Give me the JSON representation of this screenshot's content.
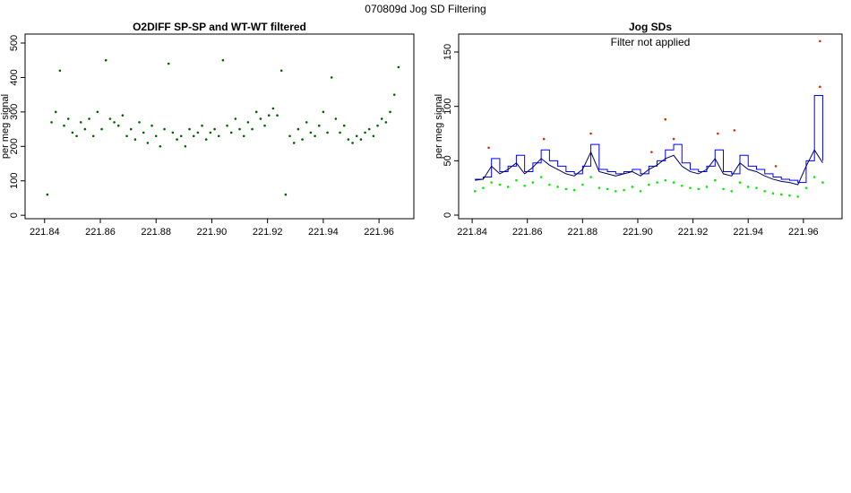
{
  "title": "070809d   Jog SD Filtering",
  "chart_data": [
    {
      "type": "scatter",
      "title": "O2DIFF SP-SP and WT-WT filtered",
      "y_label": "per meg signal",
      "xlim": [
        221.833,
        221.9725
      ],
      "ylim": [
        -10,
        526
      ],
      "xticks": [
        221.84,
        221.86,
        221.88,
        {
          "value": 221.9,
          "label": "221.90"
        },
        221.92,
        221.94,
        221.96
      ],
      "yticks": [
        0,
        100,
        200,
        300,
        400,
        500
      ],
      "x": [
        221.841,
        221.8425,
        221.844,
        221.8455,
        221.847,
        221.8485,
        221.85,
        221.8515,
        221.853,
        221.8545,
        221.856,
        221.8575,
        221.859,
        221.8605,
        221.862,
        221.8635,
        221.865,
        221.8665,
        221.868,
        221.8695,
        221.871,
        221.8725,
        221.874,
        221.8755,
        221.877,
        221.8785,
        221.88,
        221.8815,
        221.883,
        221.8845,
        221.886,
        221.8875,
        221.889,
        221.8905,
        221.892,
        221.8935,
        221.895,
        221.8965,
        221.898,
        221.8995,
        221.901,
        221.9025,
        221.904,
        221.9055,
        221.907,
        221.9085,
        221.91,
        221.9115,
        221.913,
        221.9145,
        221.916,
        221.9175,
        221.919,
        221.9205,
        221.922,
        221.9235,
        221.925,
        221.9265,
        221.928,
        221.9295,
        221.931,
        221.9325,
        221.934,
        221.9355,
        221.937,
        221.9385,
        221.94,
        221.9415,
        221.943,
        221.9445,
        221.946,
        221.9475,
        221.949,
        221.9505,
        221.952,
        221.9535,
        221.955,
        221.9565,
        221.958,
        221.9595,
        221.961,
        221.9625,
        221.964,
        221.9655,
        221.967
      ],
      "series": [
        {
          "type": "scatter",
          "color": "#006400",
          "values": [
            60,
            270,
            300,
            420,
            260,
            280,
            240,
            230,
            270,
            250,
            280,
            230,
            300,
            250,
            450,
            280,
            270,
            260,
            290,
            230,
            250,
            220,
            270,
            240,
            210,
            260,
            230,
            200,
            250,
            440,
            240,
            220,
            230,
            200,
            250,
            230,
            240,
            260,
            220,
            240,
            250,
            230,
            450,
            260,
            240,
            280,
            250,
            230,
            270,
            250,
            300,
            280,
            260,
            290,
            310,
            290,
            420,
            60,
            230,
            210,
            250,
            220,
            270,
            240,
            230,
            260,
            300,
            240,
            400,
            280,
            240,
            260,
            220,
            210,
            230,
            220,
            240,
            250,
            230,
            260,
            280,
            270,
            300,
            350,
            430
          ]
        }
      ]
    },
    {
      "type": "scatter",
      "title": "Jog SDs",
      "annotation": "Filter not applied",
      "y_label": "per meg signal",
      "xlim": [
        221.8351,
        221.974
      ],
      "ylim": [
        -3.3,
        166.5
      ],
      "xticks": [
        221.84,
        221.86,
        221.88,
        {
          "value": 221.9,
          "label": "221.90"
        },
        221.92,
        221.94,
        221.96
      ],
      "yticks": [
        0,
        50,
        100,
        150
      ],
      "x": [
        221.841,
        221.844,
        221.847,
        221.85,
        221.853,
        221.856,
        221.859,
        221.862,
        221.865,
        221.868,
        221.871,
        221.874,
        221.877,
        221.88,
        221.883,
        221.886,
        221.889,
        221.892,
        221.895,
        221.898,
        221.901,
        221.904,
        221.907,
        221.91,
        221.913,
        221.916,
        221.919,
        221.922,
        221.925,
        221.928,
        221.931,
        221.934,
        221.937,
        221.94,
        221.943,
        221.946,
        221.949,
        221.952,
        221.955,
        221.958,
        221.961,
        221.964,
        221.967
      ],
      "series": [
        {
          "type": "scatter",
          "color": "#00ee00",
          "values": [
            22,
            25,
            30,
            28,
            26,
            32,
            27,
            30,
            35,
            28,
            26,
            24,
            23,
            28,
            35,
            25,
            24,
            22,
            23,
            26,
            22,
            28,
            30,
            32,
            30,
            27,
            25,
            24,
            26,
            32,
            24,
            22,
            30,
            26,
            25,
            22,
            20,
            19,
            18,
            17,
            25,
            35,
            30
          ]
        },
        {
          "type": "step",
          "color": "#0000ff",
          "values": [
            33,
            35,
            52,
            40,
            45,
            55,
            40,
            48,
            60,
            50,
            45,
            40,
            38,
            45,
            65,
            42,
            40,
            38,
            40,
            42,
            38,
            45,
            50,
            60,
            65,
            48,
            42,
            40,
            45,
            60,
            40,
            38,
            55,
            45,
            42,
            38,
            35,
            33,
            32,
            30,
            50,
            110,
            50
          ]
        },
        {
          "type": "line",
          "color": "#000060",
          "values": [
            32,
            33,
            45,
            38,
            42,
            48,
            38,
            44,
            52,
            46,
            42,
            38,
            36,
            42,
            58,
            40,
            38,
            36,
            38,
            40,
            36,
            42,
            46,
            52,
            55,
            45,
            40,
            38,
            42,
            52,
            38,
            36,
            48,
            42,
            40,
            36,
            33,
            31,
            30,
            28,
            45,
            60,
            48
          ]
        },
        {
          "type": "scatter",
          "color": "#cc3300",
          "x": [
            221.846,
            221.866,
            221.883,
            221.905,
            221.91,
            221.913,
            221.929,
            221.935,
            221.95,
            221.966,
            221.966
          ],
          "values": [
            62,
            70,
            75,
            58,
            88,
            70,
            75,
            78,
            45,
            160,
            118
          ]
        }
      ]
    }
  ]
}
